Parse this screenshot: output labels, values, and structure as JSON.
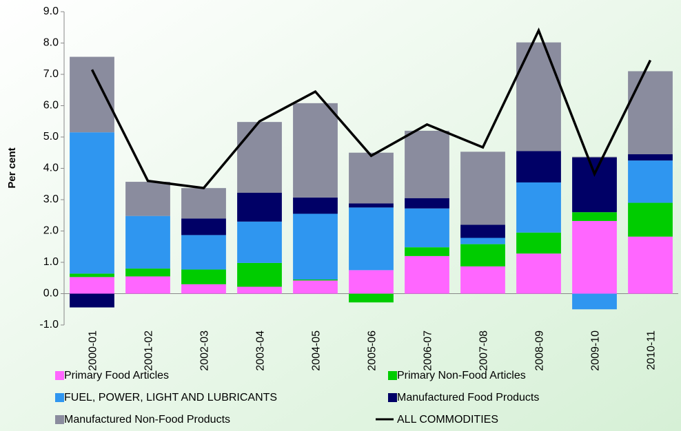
{
  "chart_data": {
    "type": "bar",
    "stacked": true,
    "y_label": "Per cent",
    "categories": [
      "2000-01",
      "2001-02",
      "2002-03",
      "2003-04",
      "2004-05",
      "2005-06",
      "2006-07",
      "2007-08",
      "2008-09",
      "2009-10",
      "2010-11"
    ],
    "ylim": [
      -1,
      9
    ],
    "yticks": [
      {
        "value": -1,
        "label": "-1.0"
      },
      {
        "value": 0,
        "label": "0.0"
      },
      {
        "value": 1,
        "label": "1.0"
      },
      {
        "value": 2,
        "label": "2.0"
      },
      {
        "value": 3,
        "label": "3.0"
      },
      {
        "value": 4,
        "label": "4.0"
      },
      {
        "value": 5,
        "label": "5.0"
      },
      {
        "value": 6,
        "label": "6.0"
      },
      {
        "value": 7,
        "label": "7.0"
      },
      {
        "value": 8,
        "label": "8.0"
      },
      {
        "value": 9,
        "label": "9.0"
      }
    ],
    "series": [
      {
        "name": "Primary Food Articles",
        "color": "#ff66ff",
        "values": [
          0.53,
          0.55,
          0.3,
          0.22,
          0.42,
          0.75,
          1.2,
          0.87,
          1.28,
          2.32,
          1.82
        ]
      },
      {
        "name": "Primary Non-Food Articles",
        "color": "#00cc00",
        "values": [
          0.11,
          0.25,
          0.47,
          0.76,
          0.03,
          -0.28,
          0.28,
          0.71,
          0.67,
          0.28,
          1.08
        ]
      },
      {
        "name": "FUEL, POWER, LIGHT AND LUBRICANTS",
        "color": "#2f96f0",
        "values": [
          4.51,
          1.68,
          1.1,
          1.32,
          2.1,
          2.0,
          1.24,
          0.2,
          1.6,
          -0.5,
          1.35
        ]
      },
      {
        "name": "Manufactured Food Products",
        "color": "#000066",
        "values": [
          -0.44,
          0,
          0.53,
          0.92,
          0.52,
          0.13,
          0.33,
          0.42,
          1.0,
          1.75,
          0.2
        ]
      },
      {
        "name": "Manufactured Non-Food Products",
        "color": "#8a8c9e",
        "values": [
          2.41,
          1.09,
          0.97,
          2.26,
          3.01,
          1.62,
          2.15,
          2.33,
          3.47,
          0.02,
          2.65
        ]
      },
      {
        "name": "ALL COMMODITIES",
        "type": "line",
        "color": "#000000",
        "values": [
          7.15,
          3.6,
          3.37,
          5.5,
          6.45,
          4.4,
          5.4,
          4.67,
          8.4,
          3.82,
          7.45
        ]
      }
    ]
  }
}
